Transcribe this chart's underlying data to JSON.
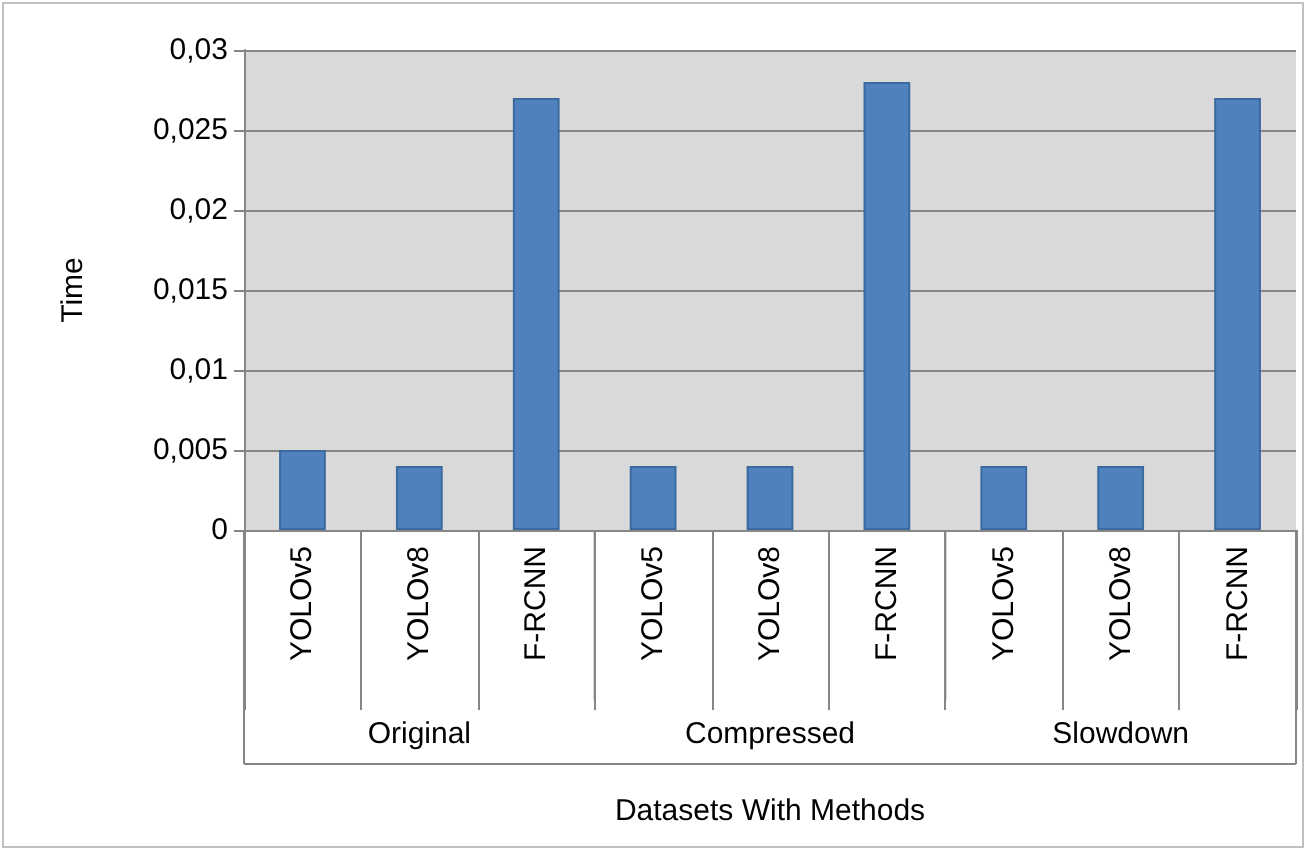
{
  "chart_data": {
    "type": "bar",
    "xlabel": "Datasets With Methods",
    "ylabel": "Time",
    "categories": [
      "YOLOv5",
      "YOLOv8",
      "F-RCNN",
      "YOLOv5",
      "YOLOv8",
      "F-RCNN",
      "YOLOv5",
      "YOLOv8",
      "F-RCNN"
    ],
    "values": [
      0.005,
      0.004,
      0.027,
      0.004,
      0.004,
      0.028,
      0.004,
      0.004,
      0.027
    ],
    "color": "#4f81bd",
    "ylim": [
      0,
      0.03
    ],
    "yticks": [
      {
        "value": 0,
        "label": "0"
      },
      {
        "value": 0.005,
        "label": "0,005"
      },
      {
        "value": 0.01,
        "label": "0,01"
      },
      {
        "value": 0.015,
        "label": "0,015"
      },
      {
        "value": 0.02,
        "label": "0,02"
      },
      {
        "value": 0.025,
        "label": "0,025"
      },
      {
        "value": 0.03,
        "label": "0,03"
      }
    ],
    "grid": "y",
    "annotations": [
      "Original",
      "Compressed",
      "Slowdown"
    ]
  }
}
